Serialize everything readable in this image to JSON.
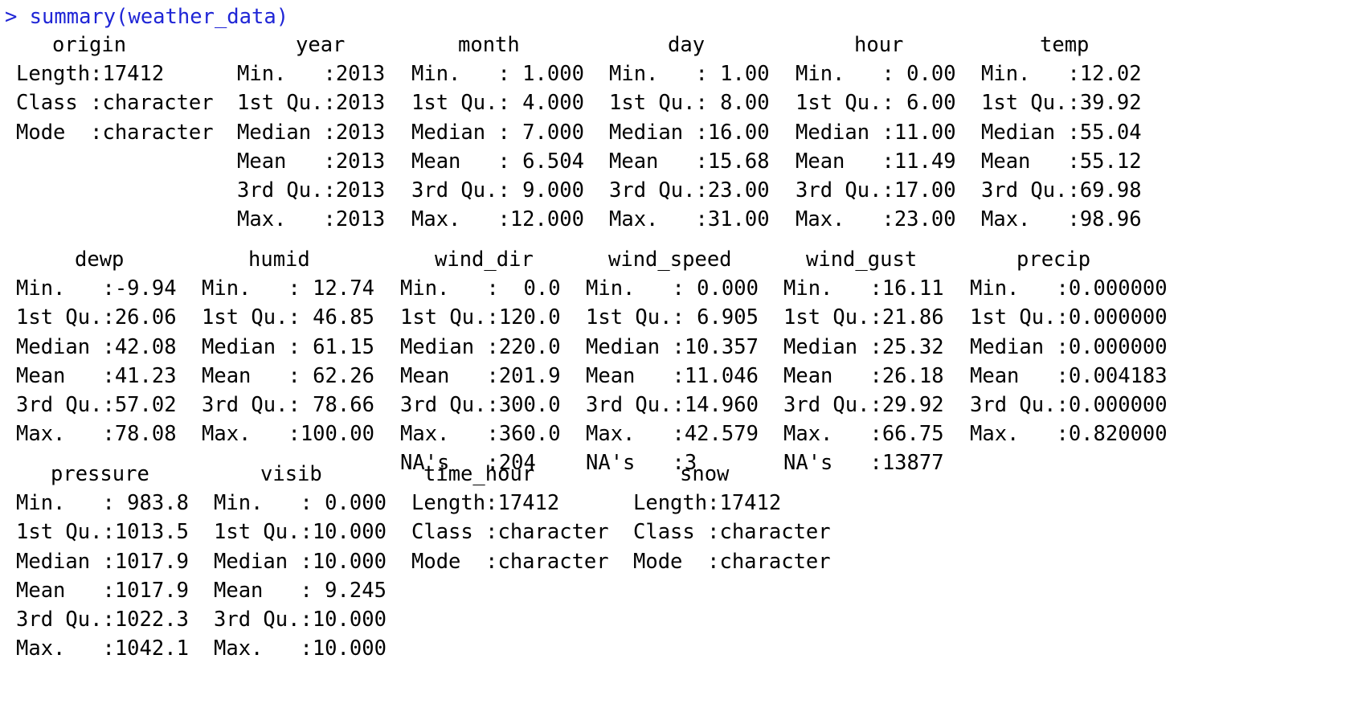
{
  "console": {
    "prompt": ">",
    "command": "summary(weather_data)"
  },
  "blocks": [
    {
      "columns": [
        {
          "header": "origin",
          "rows": [
            "Length:17412",
            "Class :character",
            "Mode  :character"
          ]
        },
        {
          "header": "year",
          "rows": [
            "Min.   :2013",
            "1st Qu.:2013",
            "Median :2013",
            "Mean   :2013",
            "3rd Qu.:2013",
            "Max.   :2013"
          ]
        },
        {
          "header": "month",
          "rows": [
            "Min.   : 1.000",
            "1st Qu.: 4.000",
            "Median : 7.000",
            "Mean   : 6.504",
            "3rd Qu.: 9.000",
            "Max.   :12.000"
          ]
        },
        {
          "header": "day",
          "rows": [
            "Min.   : 1.00",
            "1st Qu.: 8.00",
            "Median :16.00",
            "Mean   :15.68",
            "3rd Qu.:23.00",
            "Max.   :31.00"
          ]
        },
        {
          "header": "hour",
          "rows": [
            "Min.   : 0.00",
            "1st Qu.: 6.00",
            "Median :11.00",
            "Mean   :11.49",
            "3rd Qu.:17.00",
            "Max.   :23.00"
          ]
        },
        {
          "header": "temp",
          "rows": [
            "Min.   :12.02",
            "1st Qu.:39.92",
            "Median :55.04",
            "Mean   :55.12",
            "3rd Qu.:69.98",
            "Max.   :98.96"
          ]
        }
      ]
    },
    {
      "columns": [
        {
          "header": "dewp",
          "rows": [
            "Min.   :-9.94",
            "1st Qu.:26.06",
            "Median :42.08",
            "Mean   :41.23",
            "3rd Qu.:57.02",
            "Max.   :78.08"
          ]
        },
        {
          "header": "humid",
          "rows": [
            "Min.   : 12.74",
            "1st Qu.: 46.85",
            "Median : 61.15",
            "Mean   : 62.26",
            "3rd Qu.: 78.66",
            "Max.   :100.00"
          ]
        },
        {
          "header": "wind_dir",
          "rows": [
            "Min.   :  0.0",
            "1st Qu.:120.0",
            "Median :220.0",
            "Mean   :201.9",
            "3rd Qu.:300.0",
            "Max.   :360.0",
            "NA's   :204"
          ]
        },
        {
          "header": "wind_speed",
          "rows": [
            "Min.   : 0.000",
            "1st Qu.: 6.905",
            "Median :10.357",
            "Mean   :11.046",
            "3rd Qu.:14.960",
            "Max.   :42.579",
            "NA's   :3"
          ]
        },
        {
          "header": "wind_gust",
          "rows": [
            "Min.   :16.11",
            "1st Qu.:21.86",
            "Median :25.32",
            "Mean   :26.18",
            "3rd Qu.:29.92",
            "Max.   :66.75",
            "NA's   :13877"
          ]
        },
        {
          "header": "precip",
          "rows": [
            "Min.   :0.000000",
            "1st Qu.:0.000000",
            "Median :0.000000",
            "Mean   :0.004183",
            "3rd Qu.:0.000000",
            "Max.   :0.820000"
          ]
        }
      ]
    },
    {
      "columns": [
        {
          "header": "pressure",
          "rows": [
            "Min.   : 983.8",
            "1st Qu.:1013.5",
            "Median :1017.9",
            "Mean   :1017.9",
            "3rd Qu.:1022.3",
            "Max.   :1042.1"
          ]
        },
        {
          "header": "visib",
          "rows": [
            "Min.   : 0.000",
            "1st Qu.:10.000",
            "Median :10.000",
            "Mean   : 9.245",
            "3rd Qu.:10.000",
            "Max.   :10.000"
          ]
        },
        {
          "header": "time_hour",
          "rows": [
            "Length:17412",
            "Class :character",
            "Mode  :character"
          ]
        },
        {
          "header": "snow",
          "rows": [
            "Length:17412",
            "Class :character",
            "Mode  :character"
          ]
        }
      ]
    }
  ]
}
